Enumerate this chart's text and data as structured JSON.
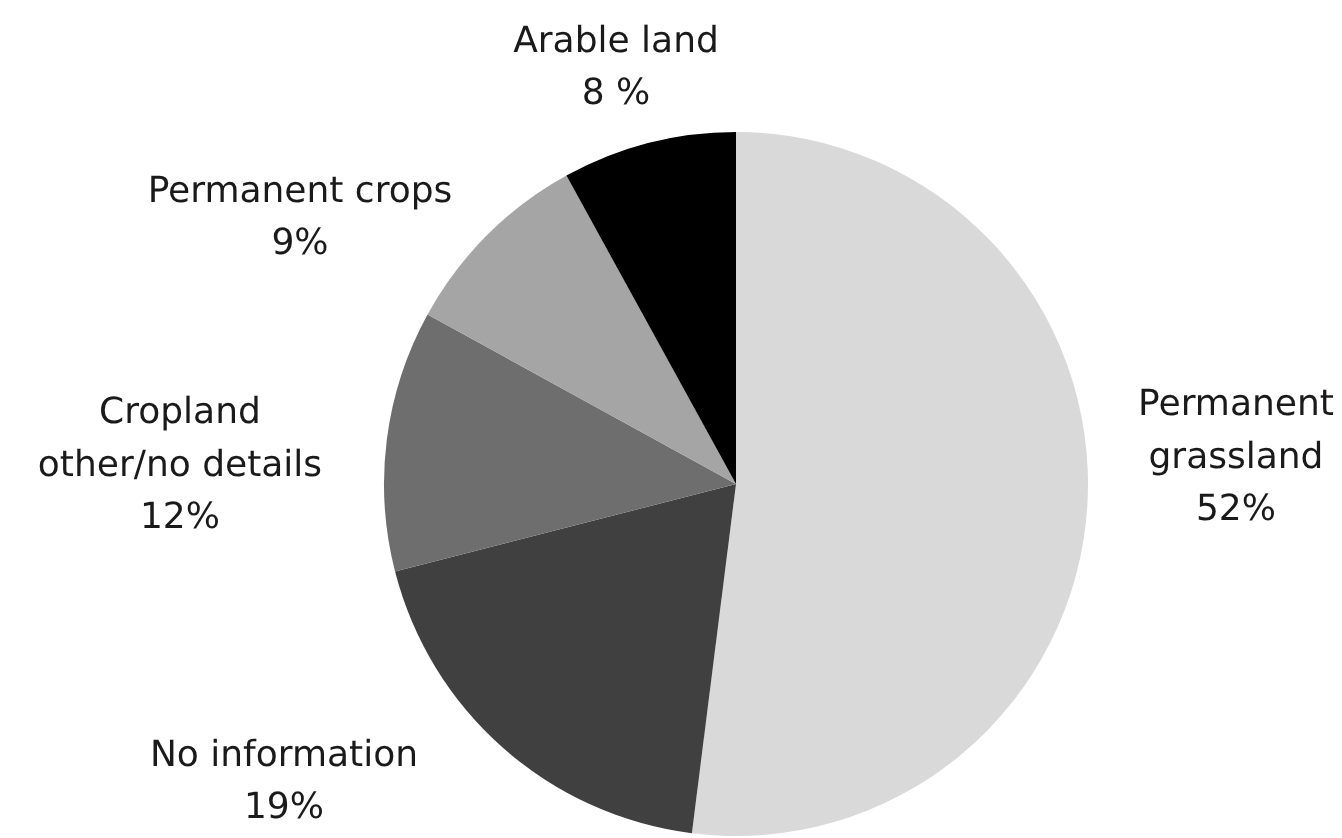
{
  "chart_data": {
    "type": "pie",
    "categories": [
      "Permanent grassland",
      "No information",
      "Cropland other/no details",
      "Permanent crops",
      "Arable land"
    ],
    "values": [
      52,
      19,
      12,
      9,
      8
    ],
    "colors": [
      "#d9d9d9",
      "#404040",
      "#6e6e6e",
      "#a5a5a5",
      "#000000"
    ],
    "value_labels": [
      "52%",
      "19%",
      "12%",
      "9%",
      "8 %"
    ]
  }
}
